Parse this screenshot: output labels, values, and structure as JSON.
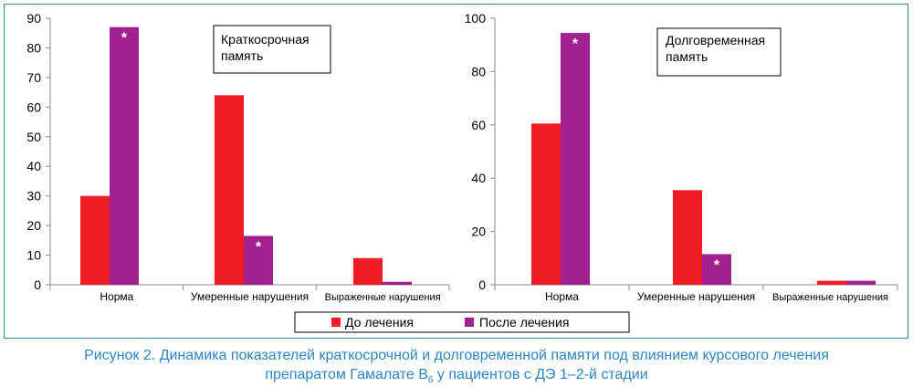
{
  "colors": {
    "before": "#ee1c24",
    "after": "#a3208f",
    "frame": "#2b8fbf",
    "caption": "#2a86c8"
  },
  "chart_data": [
    {
      "type": "bar",
      "title": "Краткосрочная память",
      "title_lines": [
        "Краткосрочная",
        "память"
      ],
      "categories": [
        "Норма",
        "Умеренные нарушения",
        "Выраженные нарушения"
      ],
      "series": [
        {
          "name": "До лечения",
          "values": [
            30,
            64,
            9
          ]
        },
        {
          "name": "После лечения",
          "values": [
            87,
            16.5,
            1
          ]
        }
      ],
      "ylim": [
        0,
        90
      ],
      "yticks": [
        0,
        10,
        20,
        30,
        40,
        50,
        60,
        70,
        80,
        90
      ],
      "significance": [
        {
          "series": 1,
          "category": 0,
          "label": "*"
        },
        {
          "series": 1,
          "category": 1,
          "label": "*"
        }
      ]
    },
    {
      "type": "bar",
      "title": "Долговременная память",
      "title_lines": [
        "Долговременная",
        "память"
      ],
      "categories": [
        "Норма",
        "Умеренные нарушения",
        "Выраженные нарушения"
      ],
      "series": [
        {
          "name": "До лечения",
          "values": [
            60.5,
            35.5,
            1.5
          ]
        },
        {
          "name": "После лечения",
          "values": [
            94.5,
            11.5,
            1.5
          ]
        }
      ],
      "ylim": [
        0,
        100
      ],
      "yticks": [
        0,
        20,
        40,
        60,
        80,
        100
      ],
      "significance": [
        {
          "series": 1,
          "category": 0,
          "label": "*"
        },
        {
          "series": 1,
          "category": 1,
          "label": "*"
        }
      ]
    }
  ],
  "legend": {
    "before_label": "До лечения",
    "after_label": "После лечения"
  },
  "caption": {
    "line1": "Рисунок 2.  Динамика показателей краткосрочной и долговременной памяти под влиянием курсового лечения",
    "line2_pre": "препаратом Гамалате B",
    "line2_sub": "6",
    "line2_post": " у пациентов с ДЭ 1–2-й стадии"
  }
}
